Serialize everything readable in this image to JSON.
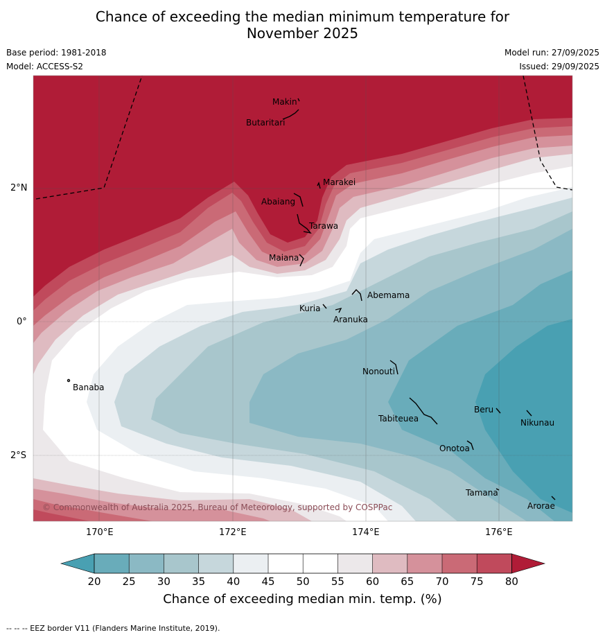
{
  "title": {
    "line1": "Chance of exceeding the median minimum temperature for",
    "line2": "November 2025"
  },
  "meta": {
    "base_period": "Base period: 1981-2018",
    "model": "Model: ACCESS-S2",
    "model_run": "Model run: 27/09/2025",
    "issued": "Issued: 29/09/2025"
  },
  "axes": {
    "lon_labels": [
      "170°E",
      "172°E",
      "174°E",
      "176°E"
    ],
    "lat_labels": [
      "2°N",
      "0°",
      "2°S"
    ]
  },
  "islands": [
    {
      "name": "Makin"
    },
    {
      "name": "Butaritari"
    },
    {
      "name": "Marakei"
    },
    {
      "name": "Abaiang"
    },
    {
      "name": "Tarawa"
    },
    {
      "name": "Maiana"
    },
    {
      "name": "Abemama"
    },
    {
      "name": "Kuria"
    },
    {
      "name": "Aranuka"
    },
    {
      "name": "Nonouti"
    },
    {
      "name": "Banaba"
    },
    {
      "name": "Tabiteuea"
    },
    {
      "name": "Beru"
    },
    {
      "name": "Nikunau"
    },
    {
      "name": "Onotoa"
    },
    {
      "name": "Tamana"
    },
    {
      "name": "Arorae"
    }
  ],
  "copyright": "© Commonwealth of Australia 2025, Bureau of Meteorology, supported by COSPPac",
  "colorbar": {
    "ticks": [
      "20",
      "25",
      "30",
      "35",
      "40",
      "45",
      "50",
      "55",
      "60",
      "65",
      "70",
      "75",
      "80"
    ],
    "title": "Chance of exceeding median min. temp. (%)",
    "colors": {
      "below20": "#49a0b2",
      "20_25": "#69acba",
      "25_30": "#8bb9c4",
      "30_35": "#a8c6cc",
      "35_40": "#c6d7dc",
      "40_45": "#ebeff2",
      "45_50": "#ffffff",
      "50_55": "#ffffff",
      "55_60": "#ece8ea",
      "60_65": "#dfbbc1",
      "65_70": "#d5919b",
      "70_75": "#ca6a76",
      "75_80": "#c04a5c",
      "above80": "#b01c37"
    }
  },
  "eez_note": "-- -- -- EEZ border V11 (Flanders Marine Institute, 2019)."
}
